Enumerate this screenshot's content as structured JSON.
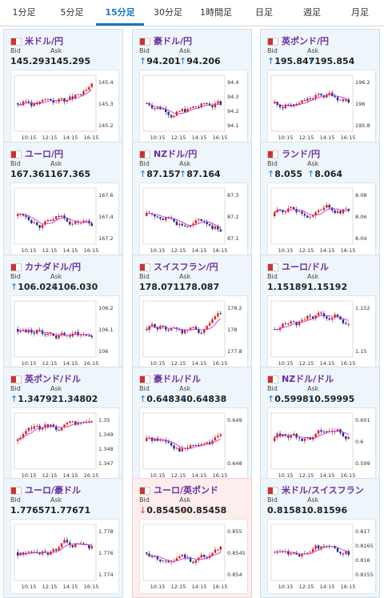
{
  "tabs": [
    "1分足",
    "5分足",
    "15分足",
    "30分足",
    "1時間足",
    "日足",
    "週足",
    "月足"
  ],
  "active_tab": 2,
  "colors": {
    "accent": "#1a73c8",
    "up": "#e02020",
    "down": "#1f2d8a",
    "ma": "#cc33cc",
    "title": "#6b2fa0"
  },
  "labels": {
    "bid": "Bid",
    "ask": "Ask"
  },
  "pairs": [
    {
      "name": "米ドル/円",
      "arrow": "",
      "bid": "145.293",
      "ask": "145.295",
      "flag": "us-jp-flag-icon",
      "yticks": [
        "145.4",
        "145.3",
        "145.2"
      ],
      "xticks": [
        "10:15",
        "12:15",
        "14:15",
        "16:15"
      ]
    },
    {
      "name": "豪ドル/円",
      "arrow": "↑",
      "bid": "94.201",
      "ask": "94.206",
      "flag": "au-jp-flag-icon",
      "yticks": [
        "94.4",
        "94.3",
        "94.2",
        "94.1"
      ],
      "xticks": [
        "10:15",
        "12:15",
        "14:15",
        "16:15"
      ]
    },
    {
      "name": "英ポンド/円",
      "arrow": "↑",
      "bid": "195.847",
      "ask": "195.854",
      "flag": "gb-jp-flag-icon",
      "yticks": [
        "196.2",
        "196",
        "195.8"
      ],
      "xticks": [
        "10:15",
        "12:15",
        "14:15",
        "16:15"
      ]
    },
    {
      "name": "ユーロ/円",
      "arrow": "",
      "bid": "167.361",
      "ask": "167.365",
      "flag": "eu-jp-flag-icon",
      "yticks": [
        "167.6",
        "167.4",
        "167.2"
      ],
      "xticks": [
        "10:15",
        "12:15",
        "14:15",
        "16:15"
      ]
    },
    {
      "name": "NZドル/円",
      "arrow": "↑",
      "bid": "87.157",
      "ask": "87.164",
      "flag": "nz-jp-flag-icon",
      "yticks": [
        "87.3",
        "87.2",
        "87.1"
      ],
      "xticks": [
        "10:15",
        "12:15",
        "14:15",
        "16:15"
      ]
    },
    {
      "name": "ランド/円",
      "arrow": "↑",
      "bid": "8.055",
      "ask": "8.064",
      "flag": "za-jp-flag-icon",
      "yticks": [
        "8.08",
        "8.06",
        "8.04"
      ],
      "xticks": [
        "10:15",
        "12:15",
        "14:15",
        "16:15"
      ]
    },
    {
      "name": "カナダドル/円",
      "arrow": "↑",
      "bid": "106.024",
      "ask": "106.030",
      "flag": "ca-jp-flag-icon",
      "yticks": [
        "106.2",
        "106.1",
        "106"
      ],
      "xticks": [
        "10:15",
        "12:15",
        "14:15",
        "16:15"
      ]
    },
    {
      "name": "スイスフラン/円",
      "arrow": "",
      "bid": "178.071",
      "ask": "178.087",
      "flag": "ch-jp-flag-icon",
      "yticks": [
        "178.2",
        "178",
        "177.8"
      ],
      "xticks": [
        "10:15",
        "12:15",
        "14:15",
        "16:15"
      ]
    },
    {
      "name": "ユーロ/ドル",
      "arrow": "",
      "bid": "1.15189",
      "ask": "1.15192",
      "flag": "eu-us-flag-icon",
      "yticks": [
        "1.152",
        "1.15"
      ],
      "xticks": [
        "10:15",
        "12:15",
        "14:15",
        "16:15"
      ]
    },
    {
      "name": "英ポンド/ドル",
      "arrow": "↑",
      "bid": "1.34792",
      "ask": "1.34802",
      "flag": "gb-us-flag-icon",
      "yticks": [
        "1.35",
        "1.349",
        "1.348",
        "1.347"
      ],
      "xticks": [
        "10:15",
        "12:15",
        "14:15",
        "16:15"
      ]
    },
    {
      "name": "豪ドル/ドル",
      "arrow": "↑",
      "bid": "0.64834",
      "ask": "0.64838",
      "flag": "au-us-flag-icon",
      "yticks": [
        "0.649",
        "0.648"
      ],
      "xticks": [
        "10:15",
        "12:15",
        "14:15",
        "16:15"
      ]
    },
    {
      "name": "NZドル/ドル",
      "arrow": "↑",
      "bid": "0.59981",
      "ask": "0.59995",
      "flag": "nz-us-flag-icon",
      "yticks": [
        "0.601",
        "0.6",
        "0.599"
      ],
      "xticks": [
        "10:15",
        "12:15",
        "14:15",
        "16:15"
      ]
    },
    {
      "name": "ユーロ/豪ドル",
      "arrow": "",
      "bid": "1.77657",
      "ask": "1.77671",
      "flag": "eu-au-flag-icon",
      "yticks": [
        "1.778",
        "1.776",
        "1.774"
      ],
      "xticks": [
        "10:15",
        "12:15",
        "14:15",
        "16:15"
      ]
    },
    {
      "name": "ユーロ/英ポンド",
      "arrow": "↓",
      "bid": "0.85450",
      "ask": "0.85458",
      "flag": "eu-gb-flag-icon",
      "yticks": [
        "0.855",
        "0.8545",
        "0.854"
      ],
      "xticks": [
        "10:15",
        "12:15",
        "14:15",
        "16:15"
      ]
    },
    {
      "name": "米ドル/スイスフラン",
      "arrow": "",
      "bid": "0.81581",
      "ask": "0.81596",
      "flag": "us-ch-flag-icon",
      "yticks": [
        "0.817",
        "0.8165",
        "0.816",
        "0.8155"
      ],
      "xticks": [
        "10:15",
        "12:15",
        "14:15",
        "16:15"
      ]
    }
  ]
}
